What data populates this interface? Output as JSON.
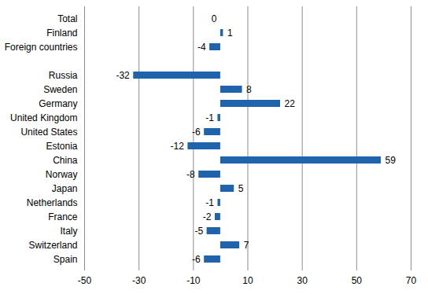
{
  "chart_data": {
    "type": "bar",
    "orientation": "horizontal",
    "categories": [
      "Total",
      "Finland",
      "Foreign countries",
      null,
      "Russia",
      "Sweden",
      "Germany",
      "United Kingdom",
      "United States",
      "Estonia",
      "China",
      "Norway",
      "Japan",
      "Netherlands",
      "France",
      "Italy",
      "Switzerland",
      "Spain"
    ],
    "values": [
      0,
      1,
      -4,
      null,
      -32,
      8,
      22,
      -1,
      -6,
      -12,
      59,
      -8,
      5,
      -1,
      -2,
      -5,
      7,
      -6
    ],
    "color": "#1f63ad",
    "xlim": [
      -50,
      70
    ],
    "xticks": [
      -50,
      -30,
      -10,
      10,
      30,
      50,
      70
    ],
    "grid": true,
    "data_labels": true
  }
}
